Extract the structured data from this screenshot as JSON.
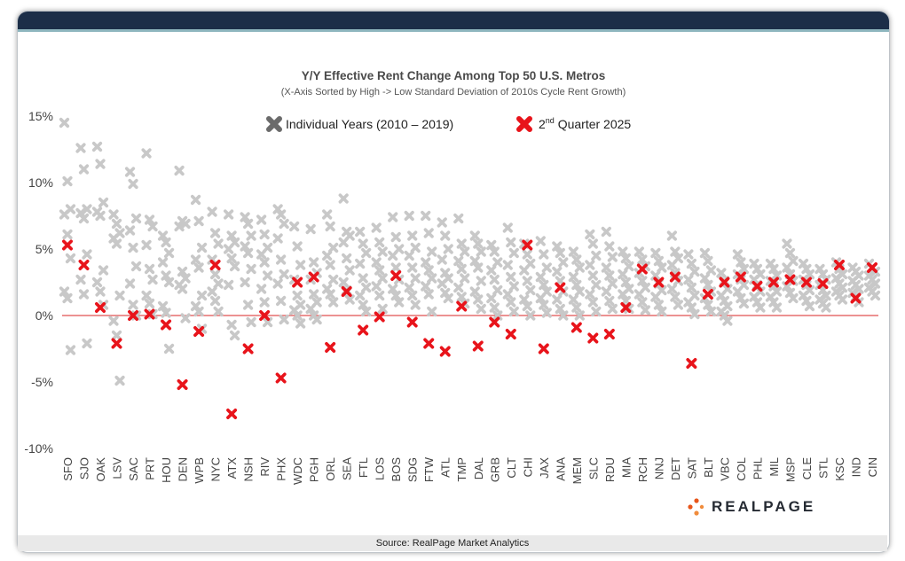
{
  "footer": {
    "source": "Source: RealPage Market Analytics"
  },
  "logo": {
    "text": "REALPAGE"
  },
  "colors": {
    "header": "#1c2e48",
    "gray_marker": "#c8c8c8",
    "red_marker": "#e8141b",
    "zero_line": "#e05050"
  },
  "chart_data": {
    "type": "scatter",
    "title": "Y/Y Effective Rent Change Among Top 50 U.S. Metros",
    "subtitle": "(X-Axis Sorted by High -> Low Standard Deviation of 2010s Cycle Rent Growth)",
    "ylim": [
      -10,
      15
    ],
    "ytick_values": [
      15,
      10,
      5,
      0,
      -5,
      -10
    ],
    "ytick_labels": [
      "15%",
      "10%",
      "5%",
      "0%",
      "-5%",
      "-10%"
    ],
    "legend": [
      {
        "label": "Individual Years (2010 – 2019)",
        "color": "#6b6b6b"
      },
      {
        "label": "2nd Quarter 2025",
        "label_main": "2",
        "label_sup": "nd",
        "label_rest": " Quarter 2025",
        "color": "#e8141b"
      }
    ],
    "categories": [
      "SFO",
      "SJO",
      "OAK",
      "LSV",
      "SAC",
      "PRT",
      "HOU",
      "DEN",
      "WPB",
      "NYC",
      "ATX",
      "NSH",
      "RIV",
      "PHX",
      "WDC",
      "PGH",
      "ORL",
      "SEA",
      "FTL",
      "LOS",
      "BOS",
      "SDG",
      "FTW",
      "ATL",
      "TMP",
      "DAL",
      "GRB",
      "CLT",
      "CHI",
      "JAX",
      "ANA",
      "MEM",
      "SLC",
      "RDU",
      "MIA",
      "RCH",
      "NNJ",
      "DET",
      "SAT",
      "BLT",
      "VBC",
      "COL",
      "PHL",
      "MIL",
      "MSP",
      "CLE",
      "STL",
      "KSC",
      "IND",
      "CIN"
    ],
    "series": [
      {
        "name": "2nd Quarter 2025",
        "values": [
          5.3,
          3.8,
          0.6,
          -2.1,
          0.0,
          0.1,
          -0.7,
          -5.2,
          -1.2,
          3.8,
          -7.4,
          -2.5,
          0.0,
          -4.7,
          2.5,
          2.9,
          -2.4,
          1.8,
          -1.1,
          -0.1,
          3.0,
          -0.5,
          -2.1,
          -2.7,
          0.7,
          -2.3,
          -0.5,
          -1.4,
          5.3,
          -2.5,
          2.1,
          -0.9,
          -1.7,
          -1.4,
          0.6,
          3.5,
          2.5,
          2.9,
          -3.6,
          1.6,
          2.5,
          2.9,
          2.2,
          2.5,
          2.7,
          2.5,
          2.4,
          3.8,
          1.3,
          3.6
        ]
      },
      {
        "name": "Individual Years (2010 – 2019)",
        "values": [
          [
            14.5,
            10.1,
            8.0,
            7.6,
            6.1,
            4.3,
            1.8,
            1.3,
            -2.6
          ],
          [
            12.6,
            11.0,
            8.0,
            7.7,
            7.3,
            4.6,
            2.7,
            1.6,
            -2.1
          ],
          [
            12.7,
            11.4,
            8.5,
            7.8,
            7.5,
            3.4,
            2.5,
            1.8,
            0.8
          ],
          [
            7.6,
            6.9,
            6.2,
            5.8,
            5.4,
            1.5,
            -0.4,
            -1.5,
            -4.9
          ],
          [
            10.8,
            9.9,
            7.3,
            6.4,
            5.1,
            3.7,
            2.4,
            0.8,
            0.0
          ],
          [
            12.2,
            7.2,
            6.7,
            5.3,
            3.5,
            2.7,
            1.5,
            0.9,
            0.1
          ],
          [
            6.0,
            5.5,
            4.7,
            4.0,
            3.0,
            2.5,
            0.7,
            0.2,
            -2.5
          ],
          [
            10.9,
            7.1,
            6.9,
            6.7,
            3.3,
            2.8,
            2.3,
            2.0,
            -0.2
          ],
          [
            8.7,
            7.1,
            5.1,
            4.2,
            3.6,
            1.5,
            0.7,
            0.3,
            -1.0
          ],
          [
            7.8,
            6.2,
            5.4,
            4.2,
            3.1,
            2.4,
            1.8,
            1.1,
            0.3
          ],
          [
            7.6,
            6.0,
            5.5,
            5.0,
            4.3,
            3.7,
            2.3,
            -0.7,
            -1.5
          ],
          [
            7.4,
            6.9,
            6.0,
            5.2,
            4.7,
            3.5,
            2.5,
            0.8,
            -0.5
          ],
          [
            7.2,
            6.1,
            5.1,
            4.6,
            4.0,
            3.0,
            2.0,
            1.0,
            -0.5
          ],
          [
            8.0,
            7.6,
            6.9,
            5.8,
            4.2,
            3.1,
            2.4,
            1.1,
            -0.3
          ],
          [
            6.7,
            5.2,
            3.8,
            2.7,
            1.5,
            0.8,
            0.4,
            0.0,
            -0.6
          ],
          [
            6.5,
            4.0,
            3.2,
            2.7,
            1.6,
            1.0,
            0.5,
            0.0,
            -0.3
          ],
          [
            7.6,
            6.7,
            5.1,
            4.5,
            3.8,
            2.7,
            2.0,
            1.6,
            1.0
          ],
          [
            8.8,
            6.3,
            6.0,
            5.5,
            4.3,
            3.4,
            2.5,
            1.9,
            1.2
          ],
          [
            6.3,
            5.4,
            4.7,
            3.9,
            2.8,
            2.1,
            1.5,
            0.8,
            0.3
          ],
          [
            6.6,
            5.5,
            4.8,
            4.0,
            3.4,
            2.8,
            2.2,
            1.5,
            0.5
          ],
          [
            7.4,
            5.9,
            5.0,
            4.5,
            3.6,
            2.7,
            2.0,
            1.5,
            1.0
          ],
          [
            7.5,
            6.0,
            5.1,
            4.5,
            3.6,
            2.8,
            2.1,
            1.5,
            0.8
          ],
          [
            7.5,
            6.2,
            4.8,
            4.0,
            3.4,
            2.8,
            2.2,
            1.6,
            0.3
          ],
          [
            7.0,
            6.0,
            5.0,
            4.2,
            3.2,
            2.8,
            2.4,
            1.7,
            1.3
          ],
          [
            7.3,
            5.4,
            4.8,
            4.1,
            3.5,
            2.8,
            2.1,
            1.4,
            0.9
          ],
          [
            6.0,
            5.4,
            4.8,
            4.1,
            3.6,
            2.6,
            1.8,
            1.2,
            0.5
          ],
          [
            5.3,
            4.8,
            4.0,
            3.4,
            2.7,
            1.9,
            1.3,
            0.6,
            0.0
          ],
          [
            6.6,
            5.5,
            4.7,
            3.8,
            2.9,
            2.2,
            1.6,
            1.0,
            0.3
          ],
          [
            5.4,
            4.6,
            3.9,
            3.4,
            2.6,
            1.9,
            1.2,
            0.7,
            0.0
          ],
          [
            5.6,
            4.6,
            3.6,
            2.9,
            2.3,
            1.8,
            1.3,
            0.8,
            0.2
          ],
          [
            5.2,
            4.7,
            4.0,
            3.3,
            2.6,
            1.8,
            1.2,
            0.5,
            0.0
          ],
          [
            4.8,
            4.2,
            3.6,
            2.9,
            2.3,
            1.8,
            1.2,
            0.6,
            0.0
          ],
          [
            6.1,
            5.4,
            4.5,
            3.8,
            3.0,
            2.3,
            1.6,
            1.0,
            0.3
          ],
          [
            6.3,
            5.2,
            4.4,
            3.6,
            3.0,
            2.4,
            1.8,
            1.1,
            0.5
          ],
          [
            4.8,
            4.3,
            3.7,
            3.1,
            2.5,
            2.0,
            1.6,
            1.1,
            0.5
          ],
          [
            4.8,
            4.2,
            3.7,
            3.2,
            2.6,
            2.1,
            1.6,
            1.0,
            0.4
          ],
          [
            4.7,
            4.1,
            3.6,
            3.0,
            2.4,
            1.9,
            1.4,
            0.8,
            0.3
          ],
          [
            6.0,
            4.8,
            4.3,
            3.8,
            3.2,
            2.6,
            2.0,
            1.4,
            0.8
          ],
          [
            4.6,
            3.9,
            3.3,
            2.7,
            2.1,
            1.5,
            1.0,
            0.6,
            0.1
          ],
          [
            4.7,
            4.1,
            3.4,
            2.8,
            2.3,
            1.8,
            1.3,
            0.8,
            0.3
          ],
          [
            3.2,
            2.6,
            2.0,
            1.5,
            1.1,
            0.7,
            0.3,
            0.0,
            -0.4
          ],
          [
            4.6,
            4.0,
            3.5,
            3.1,
            2.7,
            2.3,
            1.8,
            1.3,
            0.9
          ],
          [
            3.9,
            3.5,
            3.1,
            2.7,
            2.3,
            1.8,
            1.4,
            1.0,
            0.6
          ],
          [
            3.9,
            3.5,
            3.0,
            2.6,
            2.2,
            1.8,
            1.4,
            1.0,
            0.6
          ],
          [
            5.4,
            4.7,
            4.1,
            3.6,
            3.1,
            2.6,
            2.2,
            1.7,
            1.3
          ],
          [
            3.9,
            3.5,
            3.1,
            2.7,
            2.3,
            1.9,
            1.5,
            1.1,
            0.7
          ],
          [
            3.5,
            3.1,
            2.7,
            2.3,
            1.9,
            1.5,
            1.2,
            0.9,
            0.6
          ],
          [
            4.0,
            3.5,
            3.1,
            2.8,
            2.4,
            2.1,
            1.8,
            1.5,
            1.2
          ],
          [
            3.6,
            3.3,
            3.0,
            2.6,
            2.3,
            2.0,
            1.7,
            1.4,
            1.0
          ],
          [
            3.9,
            3.6,
            3.3,
            3.0,
            2.7,
            2.4,
            2.1,
            1.8,
            1.5
          ]
        ]
      }
    ]
  }
}
